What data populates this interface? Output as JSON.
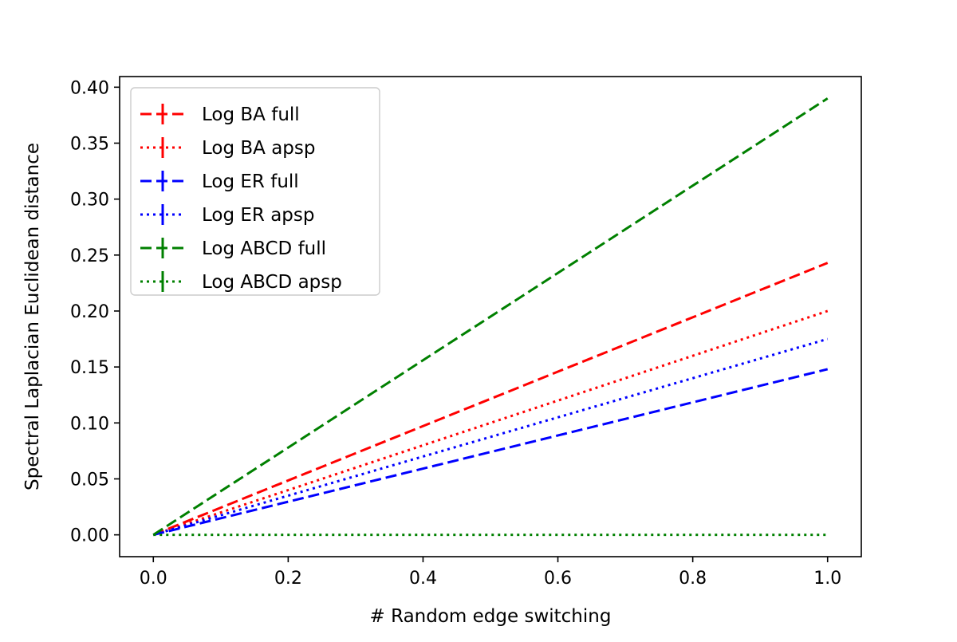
{
  "chart_data": {
    "type": "line",
    "title": "",
    "xlabel": "# Random edge switching",
    "ylabel": "Spectral Laplacian Euclidean distance",
    "xlim": [
      -0.05,
      1.05
    ],
    "ylim": [
      -0.0195,
      0.4095
    ],
    "xticks": [
      0.0,
      0.2,
      0.4,
      0.6,
      0.8,
      1.0
    ],
    "xtick_labels": [
      "0.0",
      "0.2",
      "0.4",
      "0.6",
      "0.8",
      "1.0"
    ],
    "yticks": [
      0.0,
      0.05,
      0.1,
      0.15,
      0.2,
      0.25,
      0.3,
      0.35,
      0.4
    ],
    "ytick_labels": [
      "0.00",
      "0.05",
      "0.10",
      "0.15",
      "0.20",
      "0.25",
      "0.30",
      "0.35",
      "0.40"
    ],
    "grid": false,
    "legend_position": "top-left",
    "series": [
      {
        "name": "Log BA full",
        "color": "#ff0000",
        "linestyle": "dashed",
        "x": [
          0.0,
          1.0
        ],
        "y": [
          0.0,
          0.243
        ]
      },
      {
        "name": "Log BA apsp",
        "color": "#ff0000",
        "linestyle": "dotted",
        "x": [
          0.0,
          1.0
        ],
        "y": [
          0.0,
          0.2
        ]
      },
      {
        "name": "Log ER full",
        "color": "#0000ff",
        "linestyle": "dashed",
        "x": [
          0.0,
          1.0
        ],
        "y": [
          0.0,
          0.148
        ]
      },
      {
        "name": "Log ER apsp",
        "color": "#0000ff",
        "linestyle": "dotted",
        "x": [
          0.0,
          1.0
        ],
        "y": [
          0.0,
          0.175
        ]
      },
      {
        "name": "Log ABCD full",
        "color": "#008000",
        "linestyle": "dashed",
        "x": [
          0.0,
          1.0
        ],
        "y": [
          0.0,
          0.39
        ]
      },
      {
        "name": "Log ABCD apsp",
        "color": "#008000",
        "linestyle": "dotted",
        "x": [
          0.0,
          1.0
        ],
        "y": [
          0.0,
          0.0
        ]
      }
    ]
  }
}
